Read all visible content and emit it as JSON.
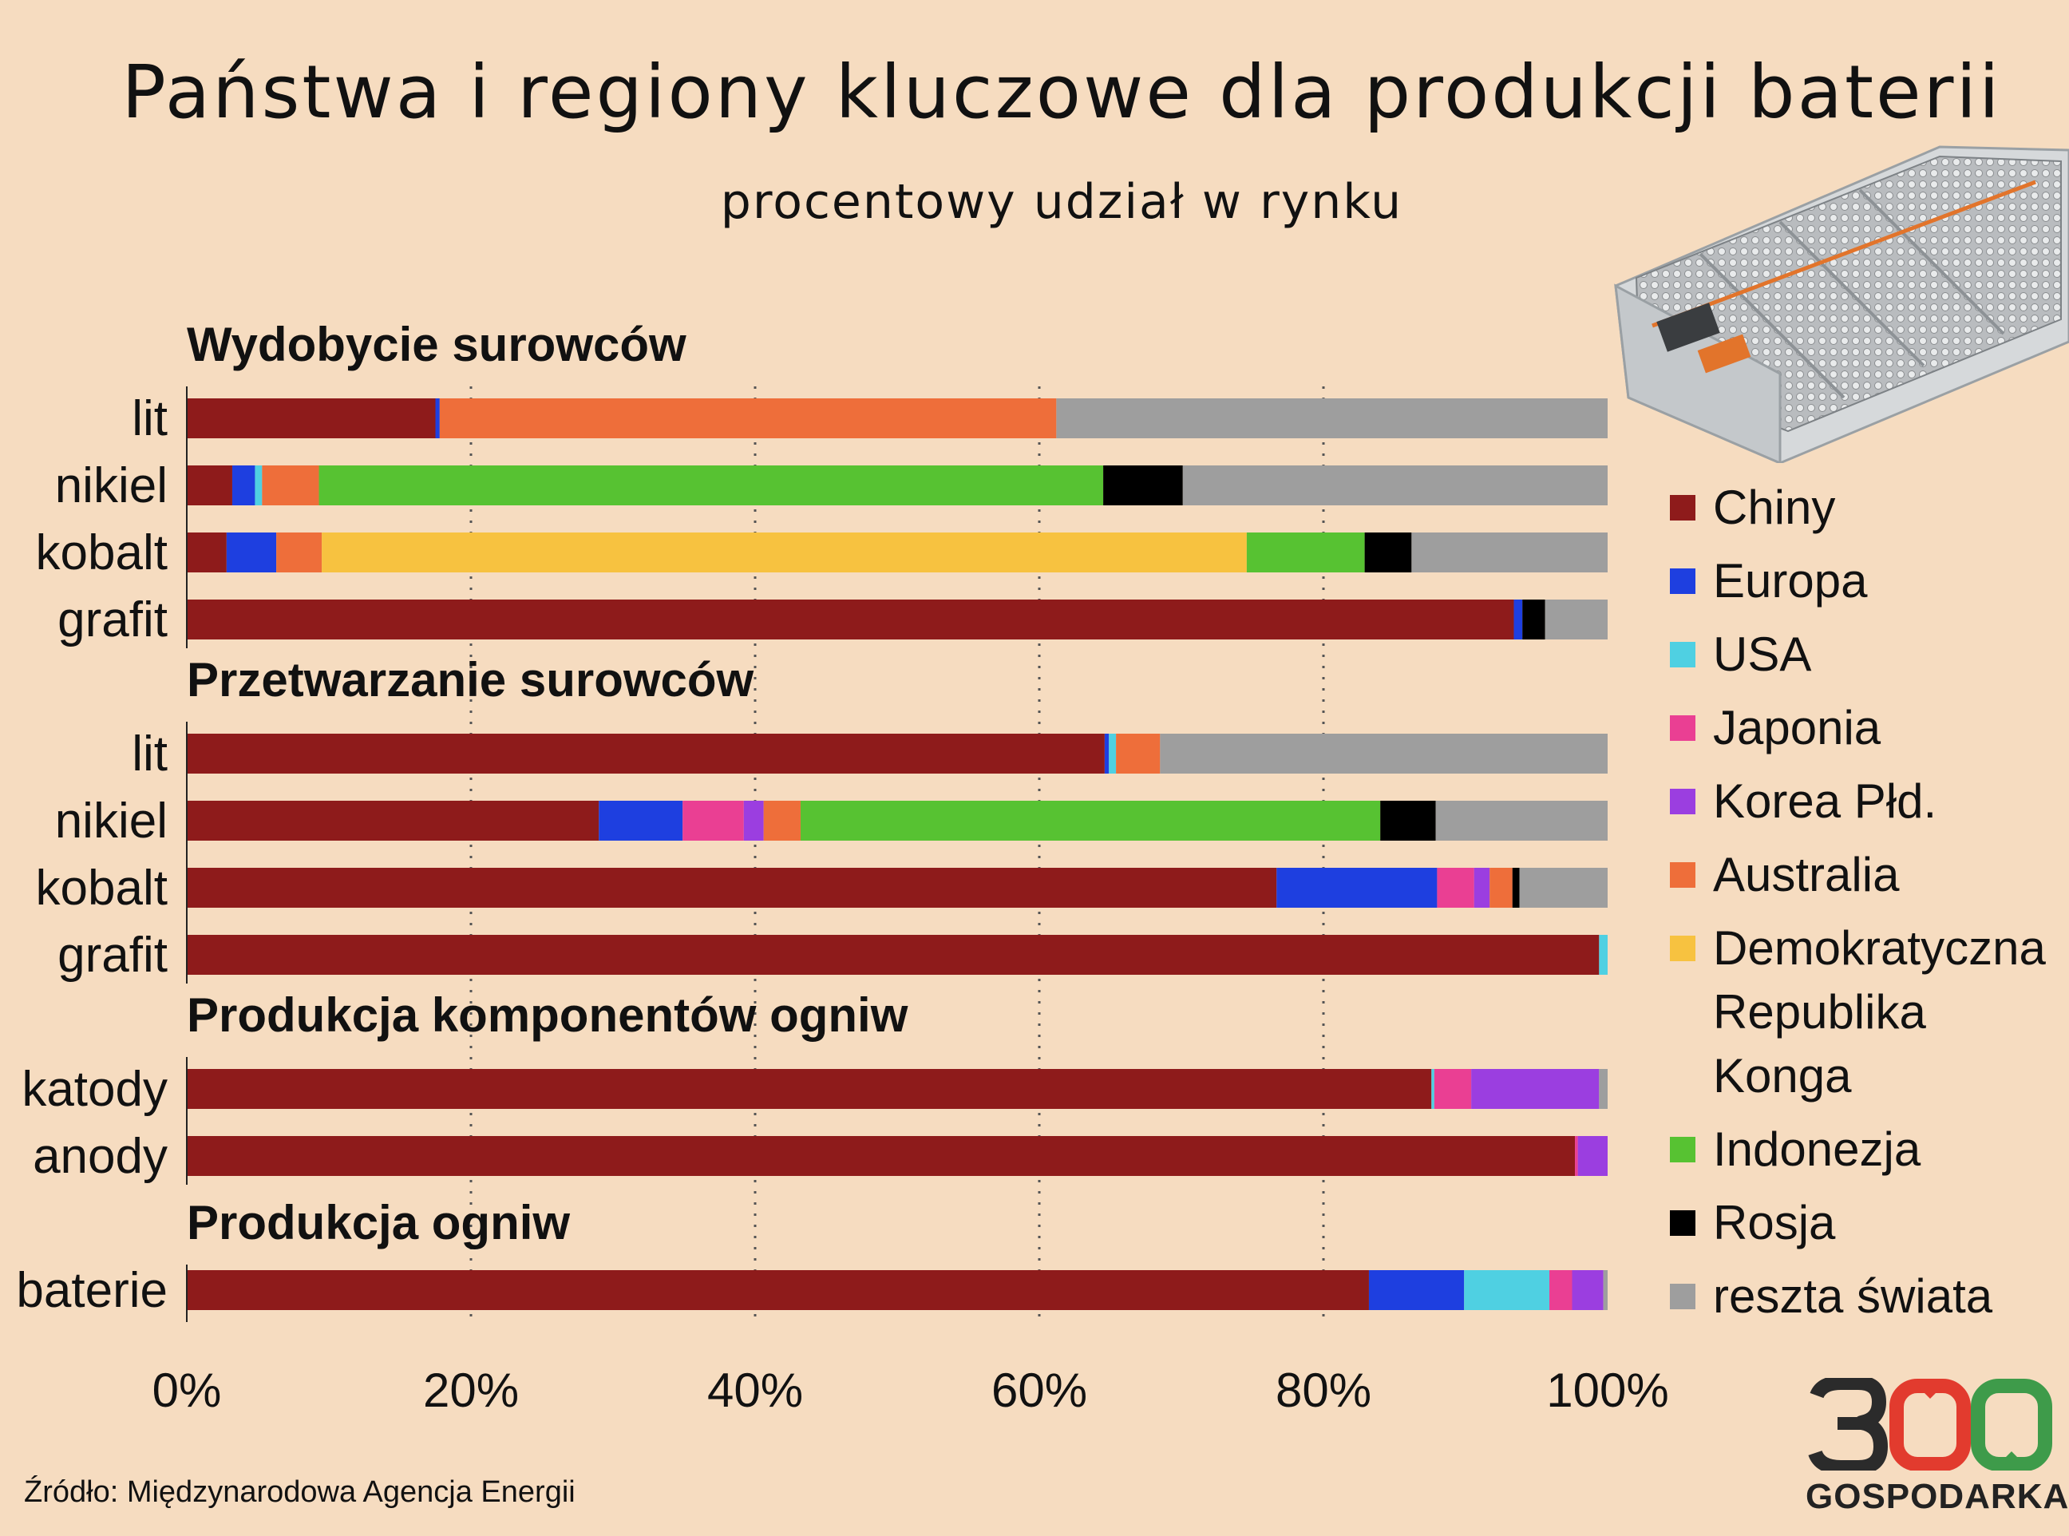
{
  "title": "Państwa i regiony kluczowe dla produkcji baterii",
  "subtitle": "procentowy udział w rynku",
  "source": "Źródło: Międzynarodowa Agencja Energii",
  "logo": {
    "digits": "300",
    "text": "GOSPODARKA"
  },
  "colors": {
    "Chiny": "#8e1b1b",
    "Europa": "#1e3fe0",
    "USA": "#4fd0e2",
    "Japonia": "#ea3f93",
    "Korea Płd.": "#9b3ee0",
    "Australia": "#ee6e3a",
    "Demokratyczna Republika Konga": "#f7c240",
    "Indonezja": "#57c232",
    "Rosja": "#000000",
    "reszta świata": "#9e9e9e"
  },
  "legend": [
    {
      "label": "Chiny",
      "color": "#8e1b1b"
    },
    {
      "label": "Europa",
      "color": "#1e3fe0"
    },
    {
      "label": "USA",
      "color": "#4fd0e2"
    },
    {
      "label": "Japonia",
      "color": "#ea3f93"
    },
    {
      "label": "Korea Płd.",
      "color": "#9b3ee0"
    },
    {
      "label": "Australia",
      "color": "#ee6e3a"
    },
    {
      "label": "Demokratyczna\nRepublika Konga",
      "color": "#f7c240"
    },
    {
      "label": "Indonezja",
      "color": "#57c232"
    },
    {
      "label": "Rosja",
      "color": "#000000"
    },
    {
      "label": "reszta świata",
      "color": "#9e9e9e"
    }
  ],
  "chart_data": {
    "type": "bar",
    "orientation": "horizontal",
    "stacked": true,
    "xlim": [
      0,
      100
    ],
    "xticks": [
      "0%",
      "20%",
      "40%",
      "60%",
      "80%",
      "100%"
    ],
    "grid": "vertical dotted",
    "legend_position": "right",
    "groups": [
      {
        "title": "Wydobycie surowców",
        "rows": [
          {
            "label": "lit",
            "segments": [
              {
                "name": "Chiny",
                "value": 17.5
              },
              {
                "name": "Europa",
                "value": 0.3
              },
              {
                "name": "Australia",
                "value": 43.4
              },
              {
                "name": "reszta świata",
                "value": 38.8
              }
            ]
          },
          {
            "label": "nikiel",
            "segments": [
              {
                "name": "Chiny",
                "value": 3.2
              },
              {
                "name": "Europa",
                "value": 1.6
              },
              {
                "name": "USA",
                "value": 0.5
              },
              {
                "name": "Australia",
                "value": 4.0
              },
              {
                "name": "Indonezja",
                "value": 55.2
              },
              {
                "name": "Rosja",
                "value": 5.6
              },
              {
                "name": "reszta świata",
                "value": 29.9
              }
            ]
          },
          {
            "label": "kobalt",
            "segments": [
              {
                "name": "Chiny",
                "value": 2.8
              },
              {
                "name": "Europa",
                "value": 3.5
              },
              {
                "name": "Australia",
                "value": 3.2
              },
              {
                "name": "Demokratyczna Republika Konga",
                "value": 65.1
              },
              {
                "name": "Indonezja",
                "value": 8.3
              },
              {
                "name": "Rosja",
                "value": 3.3
              },
              {
                "name": "reszta świata",
                "value": 13.8
              }
            ]
          },
          {
            "label": "grafit",
            "segments": [
              {
                "name": "Chiny",
                "value": 93.4
              },
              {
                "name": "Europa",
                "value": 0.6
              },
              {
                "name": "Rosja",
                "value": 1.6
              },
              {
                "name": "reszta świata",
                "value": 4.4
              }
            ]
          }
        ]
      },
      {
        "title": "Przetwarzanie surowców",
        "rows": [
          {
            "label": "lit",
            "segments": [
              {
                "name": "Chiny",
                "value": 64.6
              },
              {
                "name": "Europa",
                "value": 0.3
              },
              {
                "name": "USA",
                "value": 0.5
              },
              {
                "name": "Australia",
                "value": 3.1
              },
              {
                "name": "reszta świata",
                "value": 31.5
              }
            ]
          },
          {
            "label": "nikiel",
            "segments": [
              {
                "name": "Chiny",
                "value": 29.0
              },
              {
                "name": "Europa",
                "value": 5.9
              },
              {
                "name": "Japonia",
                "value": 4.3
              },
              {
                "name": "Korea Płd.",
                "value": 1.4
              },
              {
                "name": "Australia",
                "value": 2.6
              },
              {
                "name": "Indonezja",
                "value": 40.8
              },
              {
                "name": "Rosja",
                "value": 3.9
              },
              {
                "name": "reszta świata",
                "value": 12.1
              }
            ]
          },
          {
            "label": "kobalt",
            "segments": [
              {
                "name": "Chiny",
                "value": 76.7
              },
              {
                "name": "Europa",
                "value": 11.3
              },
              {
                "name": "Japonia",
                "value": 2.6
              },
              {
                "name": "Korea Płd.",
                "value": 1.1
              },
              {
                "name": "Australia",
                "value": 1.6
              },
              {
                "name": "Rosja",
                "value": 0.5
              },
              {
                "name": "reszta świata",
                "value": 6.2
              }
            ]
          },
          {
            "label": "grafit",
            "segments": [
              {
                "name": "Chiny",
                "value": 99.4
              },
              {
                "name": "USA",
                "value": 0.6
              }
            ]
          }
        ]
      },
      {
        "title": "Produkcja komponentów ogniw",
        "rows": [
          {
            "label": "katody",
            "segments": [
              {
                "name": "Chiny",
                "value": 87.6
              },
              {
                "name": "USA",
                "value": 0.2
              },
              {
                "name": "Japonia",
                "value": 2.6
              },
              {
                "name": "Korea Płd.",
                "value": 9.0
              },
              {
                "name": "reszta świata",
                "value": 0.6
              }
            ]
          },
          {
            "label": "anody",
            "segments": [
              {
                "name": "Chiny",
                "value": 97.7
              },
              {
                "name": "Japonia",
                "value": 0.2
              },
              {
                "name": "Korea Płd.",
                "value": 2.1
              }
            ]
          }
        ]
      },
      {
        "title": "Produkcja ogniw",
        "rows": [
          {
            "label": "baterie",
            "segments": [
              {
                "name": "Chiny",
                "value": 83.2
              },
              {
                "name": "Europa",
                "value": 6.7
              },
              {
                "name": "USA",
                "value": 6.0
              },
              {
                "name": "Japonia",
                "value": 1.6
              },
              {
                "name": "Korea Płd.",
                "value": 2.2
              },
              {
                "name": "reszta świata",
                "value": 0.3
              }
            ]
          }
        ]
      }
    ]
  }
}
